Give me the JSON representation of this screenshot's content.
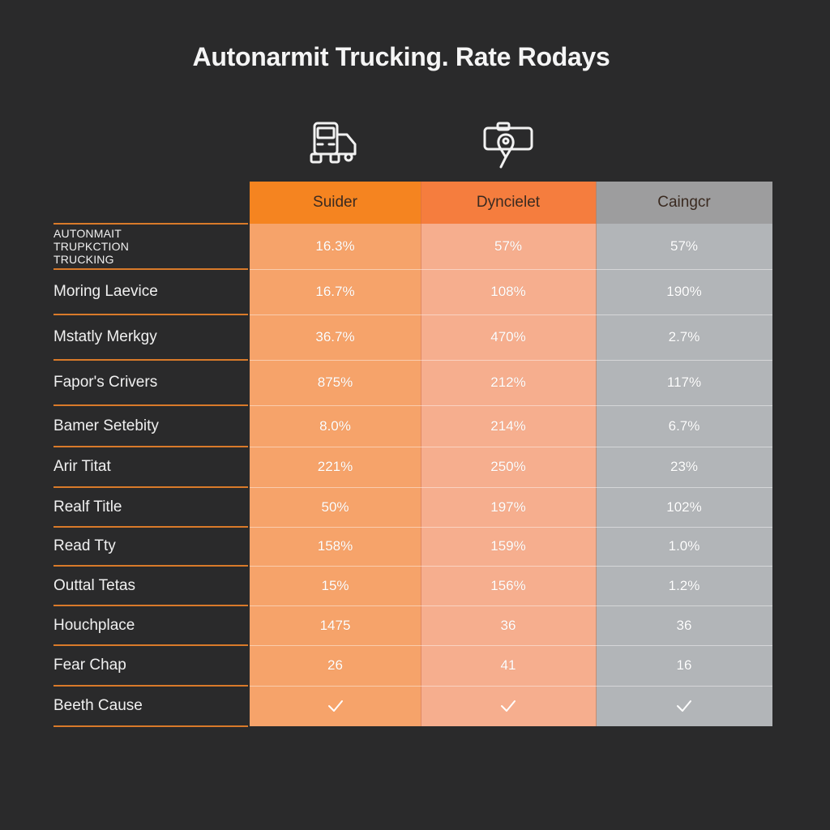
{
  "title": "Autonarmit Trucking. Rate Rodays",
  "icons": [
    "truck-icon",
    "map-pin-icon"
  ],
  "colors": {
    "background": "#2a2a2b",
    "col1_header": "#f58420",
    "col1_body": "#f6a36a",
    "col2_header": "#f57d3e",
    "col2_body": "#f6ae8e",
    "col3_header": "#9d9d9e",
    "col3_body": "#b2b5b8",
    "row_line": "#d97a2a"
  },
  "chart_data": {
    "type": "table",
    "columns": [
      "Suider",
      "Dyncielet",
      "Caingcr"
    ],
    "rows": [
      {
        "label": "AUTONMAIT\nTRUPKCTION\nTRUCKING",
        "values": [
          "16.3%",
          "57%",
          "57%"
        ]
      },
      {
        "label": "Moring Laevice",
        "values": [
          "16.7%",
          "108%",
          "190%"
        ]
      },
      {
        "label": "Mstatly Merkgy",
        "values": [
          "36.7%",
          "470%",
          "2.7%"
        ]
      },
      {
        "label": "Fapor's Crivers",
        "values": [
          "875%",
          "212%",
          "117%"
        ]
      },
      {
        "label": "Bamer Setebity",
        "values": [
          "8.0%",
          "214%",
          "6.7%"
        ]
      },
      {
        "label": "Arir Titat",
        "values": [
          "221%",
          "250%",
          "23%"
        ]
      },
      {
        "label": "Realf Title",
        "values": [
          "50%",
          "197%",
          "102%"
        ]
      },
      {
        "label": "Read Tty",
        "values": [
          "158%",
          "159%",
          "1.0%"
        ]
      },
      {
        "label": "Outtal Tetas",
        "values": [
          "15%",
          "156%",
          "1.2%"
        ]
      },
      {
        "label": "Houchplace",
        "values": [
          "1475",
          "36",
          "36"
        ]
      },
      {
        "label": "Fear Chap",
        "values": [
          "26",
          "41",
          "16"
        ]
      },
      {
        "label": "Beeth Cause",
        "values": [
          "✓",
          "✓",
          "✓"
        ]
      }
    ]
  }
}
